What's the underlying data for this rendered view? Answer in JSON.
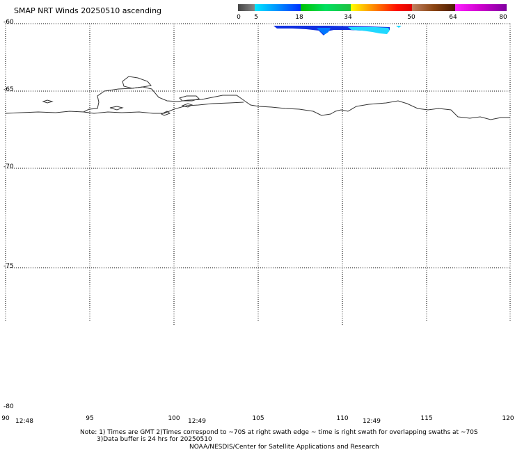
{
  "title": "SMAP NRT Winds 20250510 ascending",
  "colorbar": {
    "labels": [
      "0",
      "5",
      "18",
      "34",
      "50",
      "64",
      "80"
    ],
    "colors": [
      "#555555",
      "#00a0ff",
      "#00d050",
      "#ffd000",
      "#ff2000",
      "#8b4513",
      "#cc00cc"
    ]
  },
  "lat_labels": [
    "-60",
    "-65",
    "-70",
    "-75",
    "-80"
  ],
  "lon_labels": [
    "90",
    "95",
    "100",
    "105",
    "110",
    "115",
    "120"
  ],
  "time_labels": [
    "12:48",
    "12:49",
    "12:49"
  ],
  "notes": {
    "line1": "Note: 1) Times are GMT 2)Times correspond to ~70S at right swath edge ~ time is right swath for overlapping swaths at ~70S",
    "line2": "3)Data buffer is 24 hrs for 20250510",
    "line3": "NOAA/NESDIS/Center for Satellite Applications and Research"
  }
}
